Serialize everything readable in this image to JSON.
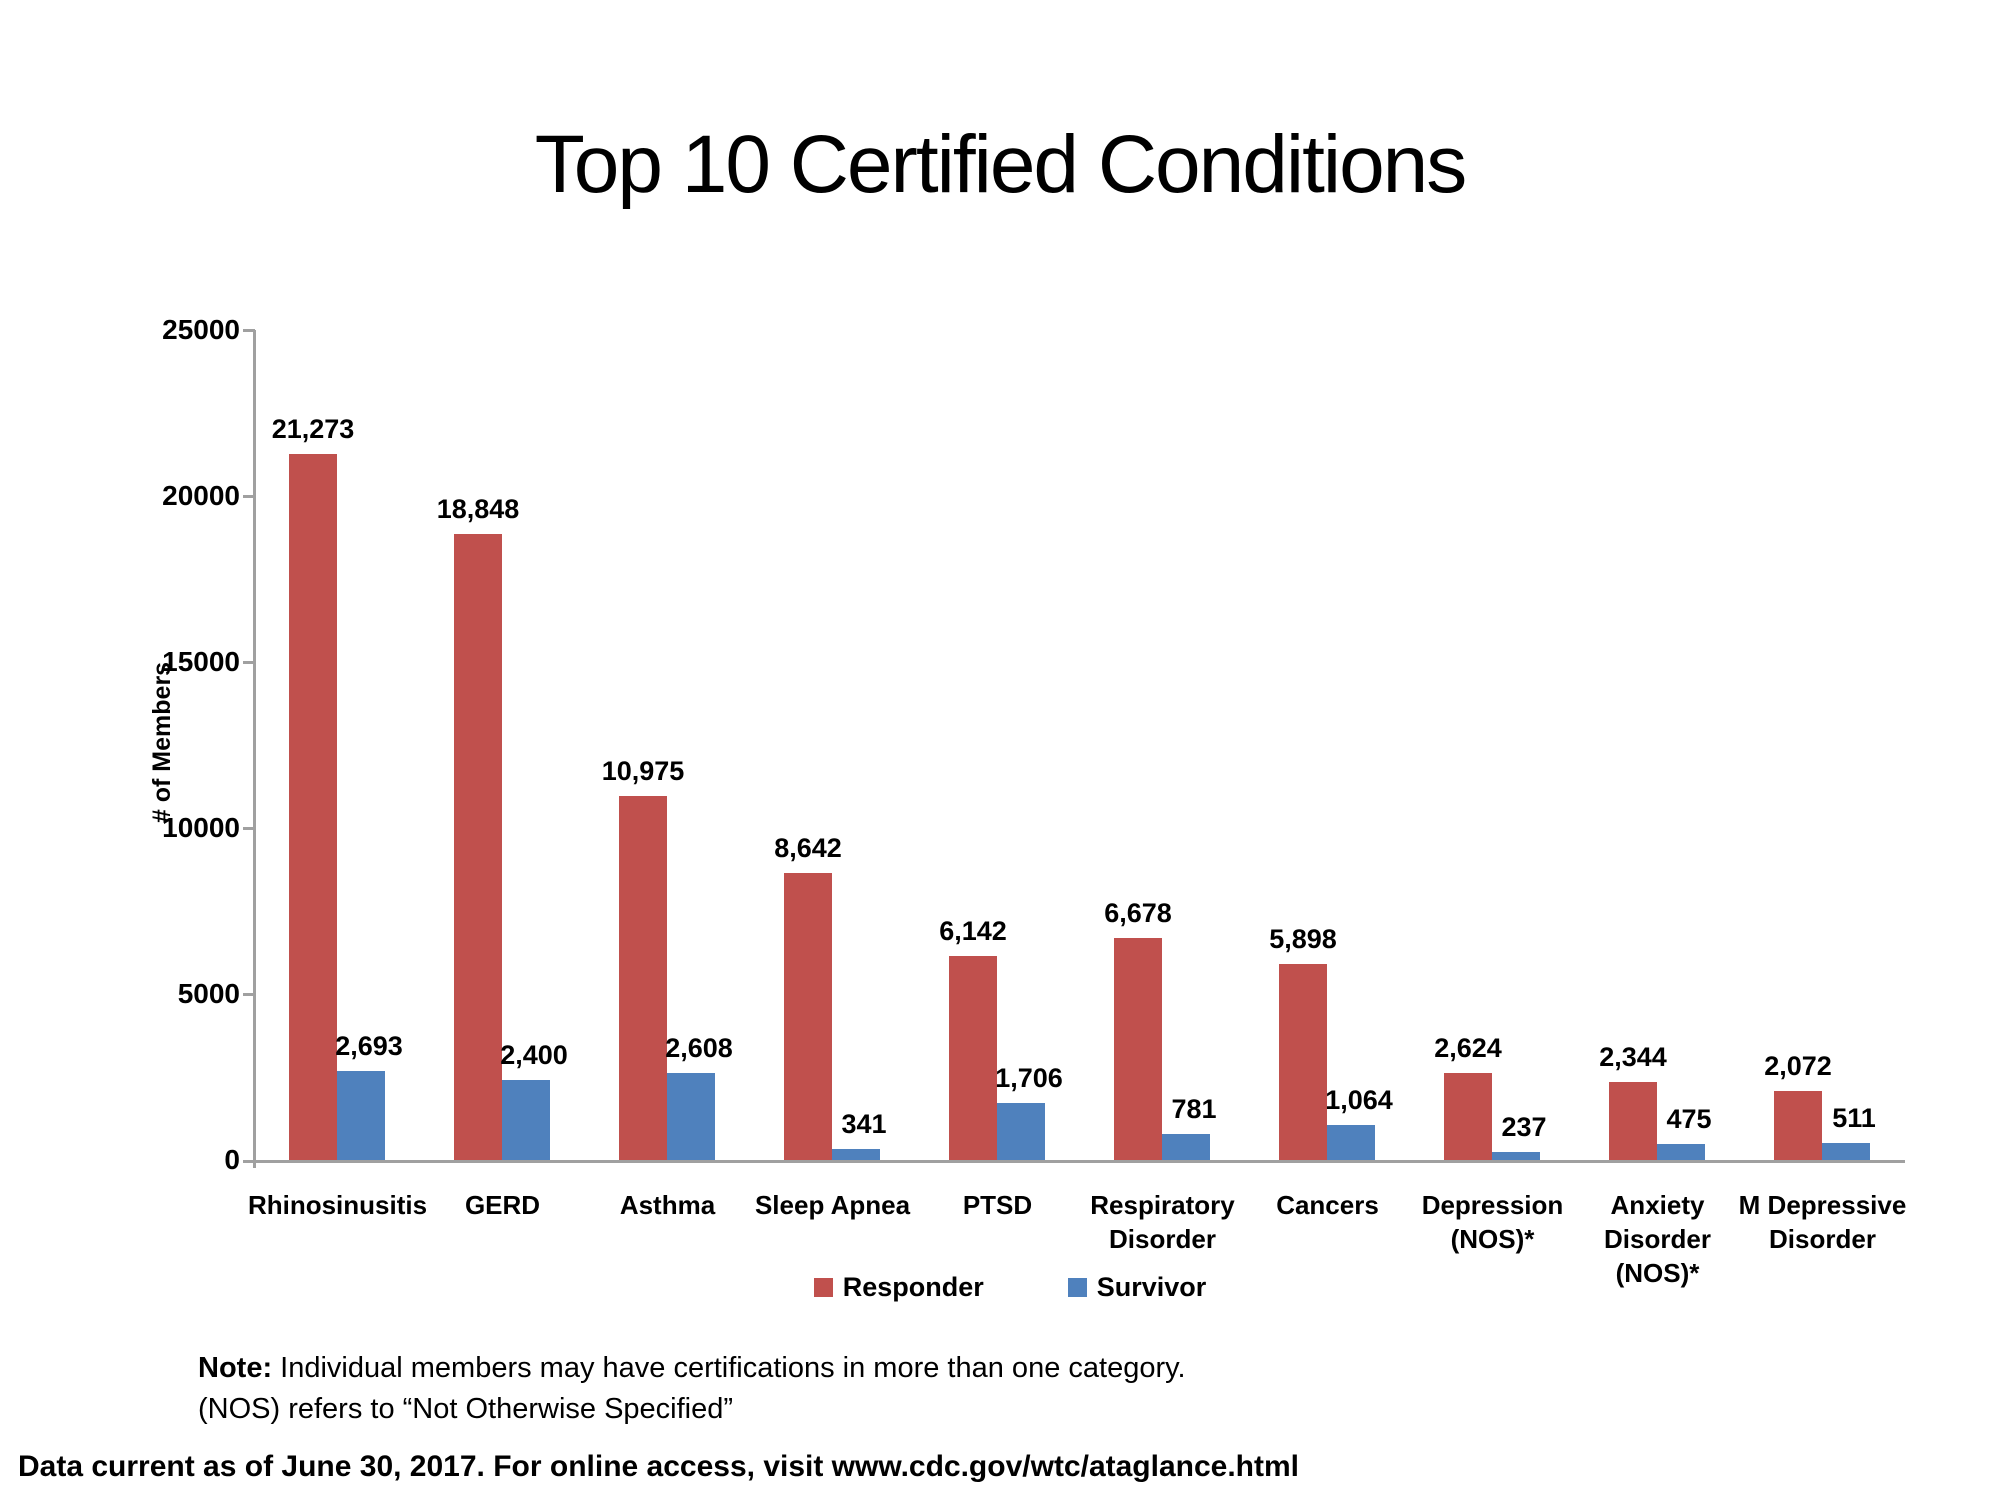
{
  "title": "Top 10 Certified Conditions",
  "chart_data": {
    "type": "bar",
    "title": "Top 10 Certified Conditions",
    "categories": [
      "Rhinosinusitis",
      "GERD",
      "Asthma",
      "Sleep Apnea",
      "PTSD",
      "Respiratory Disorder",
      "Cancers",
      "Depression (NOS)*",
      "Anxiety Disorder (NOS)*",
      "M Depressive Disorder"
    ],
    "category_lines": [
      [
        "Rhinosinusitis"
      ],
      [
        "GERD"
      ],
      [
        "Asthma"
      ],
      [
        "Sleep Apnea"
      ],
      [
        "PTSD"
      ],
      [
        "Respiratory",
        "Disorder"
      ],
      [
        "Cancers"
      ],
      [
        "Depression",
        "(NOS)*"
      ],
      [
        "Anxiety",
        "Disorder",
        "(NOS)*"
      ],
      [
        "M Depressive",
        "Disorder"
      ]
    ],
    "series": [
      {
        "name": "Responder",
        "color": "#c0504d",
        "values": [
          21273,
          18848,
          10975,
          8642,
          6142,
          6678,
          5898,
          2624,
          2344,
          2072
        ],
        "value_labels": [
          "21,273",
          "18,848",
          "10,975",
          "8,642",
          "6,142",
          "6,678",
          "5,898",
          "2,624",
          "2,344",
          "2,072"
        ]
      },
      {
        "name": "Survivor",
        "color": "#4f81bd",
        "values": [
          2693,
          2400,
          2608,
          341,
          1706,
          781,
          1064,
          237,
          475,
          511
        ],
        "value_labels": [
          "2,693",
          "2,400",
          "2,608",
          "341",
          "1,706",
          "781",
          "1,064",
          "237",
          "475",
          "511"
        ]
      }
    ],
    "xlabel": "",
    "ylabel": "# of Members",
    "ylim": [
      0,
      25000
    ],
    "ytick_interval": 5000,
    "yticks": [
      "0",
      "5000",
      "10000",
      "15000",
      "20000",
      "25000"
    ],
    "grid": false,
    "legend_position": "bottom",
    "axis_color": "#a0a0a0"
  },
  "note": {
    "label": "Note:",
    "text1": " Individual members may have certifications in more than one category.",
    "text2": "(NOS) refers to “Not Otherwise Specified”"
  },
  "footer": "Data current as of June 30, 2017. For online access, visit www.cdc.gov/wtc/ataglance.html"
}
